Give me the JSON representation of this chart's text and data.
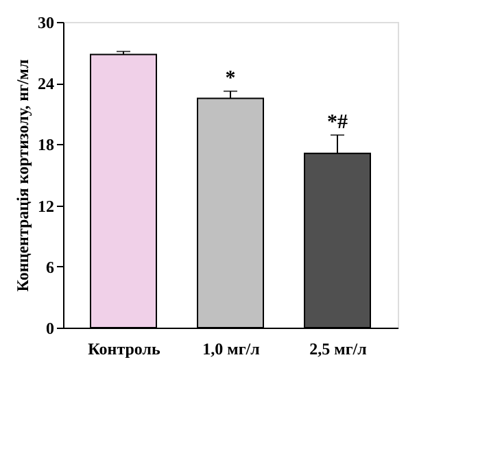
{
  "chart_data": {
    "type": "bar",
    "ylabel": "Концентрація кортизолу, нг/мл",
    "categories": [
      "Контроль",
      "1,0 мг/л",
      "2,5 мг/л"
    ],
    "values": [
      26.8,
      22.5,
      17.1
    ],
    "colors": [
      "#f0d0e8",
      "#c0c0c0",
      "#505050"
    ],
    "errors": [
      [
        26.8,
        27.1
      ],
      [
        22.5,
        23.2
      ],
      [
        17.1,
        18.9
      ]
    ],
    "ylim": [
      0,
      30
    ],
    "yticks": [
      0,
      6,
      12,
      18,
      24,
      30
    ],
    "grid": false,
    "annotations": [
      {
        "text": "*",
        "x": "1,0 мг/л",
        "y": 23.2
      },
      {
        "text": "*#",
        "x": "2,5 мг/л",
        "y": 18.9
      }
    ]
  }
}
